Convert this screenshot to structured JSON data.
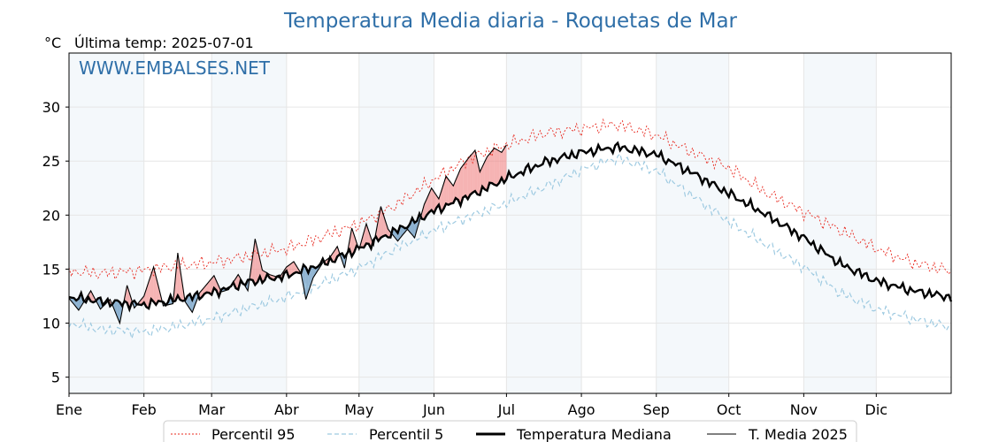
{
  "chart_data": {
    "type": "line",
    "title": "Temperatura Media diaria - Roquetas de Mar",
    "unit_label": "°C",
    "subtitle": "Última temp: 2025-07-01",
    "watermark": "WWW.EMBALSES.NET",
    "ylim": [
      3.5,
      35.0
    ],
    "yticks": [
      5,
      10,
      15,
      20,
      25,
      30
    ],
    "x_unit": "day of year",
    "xlim": [
      1,
      366
    ],
    "months": [
      {
        "label": "Ene",
        "day": 1
      },
      {
        "label": "Feb",
        "day": 32
      },
      {
        "label": "Mar",
        "day": 60
      },
      {
        "label": "Abr",
        "day": 91
      },
      {
        "label": "May",
        "day": 121
      },
      {
        "label": "Jun",
        "day": 152
      },
      {
        "label": "Jul",
        "day": 182
      },
      {
        "label": "Ago",
        "day": 213
      },
      {
        "label": "Sep",
        "day": 244
      },
      {
        "label": "Oct",
        "day": 274
      },
      {
        "label": "Nov",
        "day": 305
      },
      {
        "label": "Dic",
        "day": 335
      }
    ],
    "grid": true,
    "legend_position": "bottom",
    "colors": {
      "title": "#2f6fa8",
      "p95": "#e8281e",
      "p5": "#9ecae1",
      "median": "#000000",
      "current": "#000000",
      "above_fill": "#f08080",
      "below_fill": "#4682b4",
      "band": "#dfeaf4"
    },
    "series": [
      {
        "name": "Percentil 95",
        "style": "dotted-red",
        "points": [
          [
            1,
            14.8
          ],
          [
            15,
            14.6
          ],
          [
            32,
            14.9
          ],
          [
            46,
            15.3
          ],
          [
            60,
            15.6
          ],
          [
            75,
            16.2
          ],
          [
            91,
            16.9
          ],
          [
            106,
            18.0
          ],
          [
            121,
            19.2
          ],
          [
            136,
            20.9
          ],
          [
            152,
            23.3
          ],
          [
            167,
            25.3
          ],
          [
            182,
            26.5
          ],
          [
            198,
            27.6
          ],
          [
            213,
            28.0
          ],
          [
            228,
            28.4
          ],
          [
            244,
            27.4
          ],
          [
            259,
            25.8
          ],
          [
            274,
            24.4
          ],
          [
            289,
            22.1
          ],
          [
            305,
            20.3
          ],
          [
            320,
            18.6
          ],
          [
            335,
            16.9
          ],
          [
            350,
            15.6
          ],
          [
            366,
            14.8
          ]
        ]
      },
      {
        "name": "Percentil 5",
        "style": "dashed-lightblue",
        "points": [
          [
            1,
            10.0
          ],
          [
            15,
            9.4
          ],
          [
            32,
            9.2
          ],
          [
            46,
            9.7
          ],
          [
            60,
            10.4
          ],
          [
            75,
            11.4
          ],
          [
            91,
            12.4
          ],
          [
            106,
            13.7
          ],
          [
            121,
            15.1
          ],
          [
            136,
            16.9
          ],
          [
            152,
            18.6
          ],
          [
            167,
            19.9
          ],
          [
            182,
            21.1
          ],
          [
            198,
            22.6
          ],
          [
            213,
            24.2
          ],
          [
            228,
            25.3
          ],
          [
            244,
            24.1
          ],
          [
            259,
            21.8
          ],
          [
            274,
            19.4
          ],
          [
            289,
            17.3
          ],
          [
            305,
            15.2
          ],
          [
            320,
            12.8
          ],
          [
            335,
            11.3
          ],
          [
            350,
            10.4
          ],
          [
            366,
            9.6
          ]
        ]
      },
      {
        "name": "Temperatura Mediana",
        "style": "thick-black",
        "points": [
          [
            1,
            12.4
          ],
          [
            15,
            12.0
          ],
          [
            32,
            11.7
          ],
          [
            46,
            12.2
          ],
          [
            60,
            12.8
          ],
          [
            75,
            13.8
          ],
          [
            91,
            14.4
          ],
          [
            106,
            15.5
          ],
          [
            121,
            16.9
          ],
          [
            136,
            18.5
          ],
          [
            152,
            20.4
          ],
          [
            167,
            21.8
          ],
          [
            182,
            23.4
          ],
          [
            198,
            24.9
          ],
          [
            213,
            25.8
          ],
          [
            228,
            26.3
          ],
          [
            244,
            25.6
          ],
          [
            259,
            23.9
          ],
          [
            274,
            22.0
          ],
          [
            289,
            20.1
          ],
          [
            305,
            17.9
          ],
          [
            320,
            15.5
          ],
          [
            335,
            13.9
          ],
          [
            350,
            13.0
          ],
          [
            366,
            12.4
          ]
        ]
      },
      {
        "name": "T. Media 2025",
        "style": "thin-black",
        "points": [
          [
            1,
            12.3
          ],
          [
            5,
            11.2
          ],
          [
            10,
            13.0
          ],
          [
            14,
            11.3
          ],
          [
            18,
            12.2
          ],
          [
            22,
            10.0
          ],
          [
            25,
            13.5
          ],
          [
            28,
            11.4
          ],
          [
            32,
            12.5
          ],
          [
            36,
            15.2
          ],
          [
            40,
            11.6
          ],
          [
            44,
            11.8
          ],
          [
            46,
            16.5
          ],
          [
            49,
            12.0
          ],
          [
            52,
            11.0
          ],
          [
            55,
            12.8
          ],
          [
            58,
            13.6
          ],
          [
            61,
            14.4
          ],
          [
            64,
            12.9
          ],
          [
            67,
            13.1
          ],
          [
            71,
            14.5
          ],
          [
            75,
            13.0
          ],
          [
            78,
            17.8
          ],
          [
            81,
            14.9
          ],
          [
            84,
            14.5
          ],
          [
            88,
            14.2
          ],
          [
            91,
            15.2
          ],
          [
            94,
            15.7
          ],
          [
            97,
            14.6
          ],
          [
            99,
            12.2
          ],
          [
            102,
            14.2
          ],
          [
            106,
            15.6
          ],
          [
            109,
            16.1
          ],
          [
            112,
            17.1
          ],
          [
            115,
            15.1
          ],
          [
            118,
            18.8
          ],
          [
            121,
            16.8
          ],
          [
            124,
            19.2
          ],
          [
            127,
            17.2
          ],
          [
            130,
            20.8
          ],
          [
            133,
            18.7
          ],
          [
            137,
            17.6
          ],
          [
            141,
            18.7
          ],
          [
            144,
            17.9
          ],
          [
            148,
            21.0
          ],
          [
            151,
            22.5
          ],
          [
            154,
            21.5
          ],
          [
            157,
            23.6
          ],
          [
            160,
            22.7
          ],
          [
            163,
            24.3
          ],
          [
            166,
            25.2
          ],
          [
            169,
            26.0
          ],
          [
            171,
            24.0
          ],
          [
            174,
            25.4
          ],
          [
            177,
            26.2
          ],
          [
            180,
            25.8
          ],
          [
            182,
            26.5
          ]
        ]
      }
    ]
  }
}
